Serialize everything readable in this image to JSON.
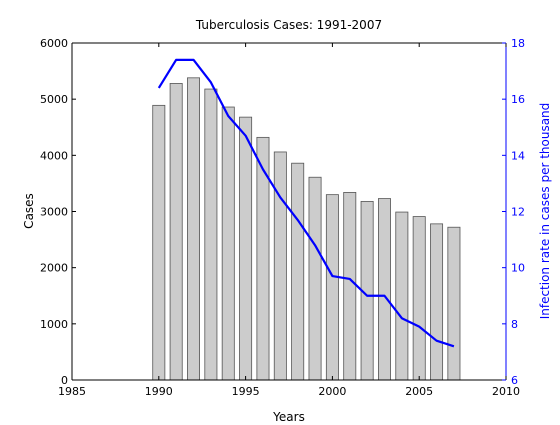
{
  "chart_data": {
    "type": "bar",
    "title": "Tuberculosis Cases: 1991-2007",
    "xlabel": "Years",
    "ylabel": "Cases",
    "ylabel_right": "Infection rate in cases per thousand",
    "xlim": [
      1985,
      2010
    ],
    "ylim": [
      0,
      6000
    ],
    "ylim_right": [
      6,
      18
    ],
    "x_ticks": [
      1985,
      1990,
      1995,
      2000,
      2005,
      2010
    ],
    "y_ticks": [
      0,
      1000,
      2000,
      3000,
      4000,
      5000,
      6000
    ],
    "y_ticks_right": [
      6,
      8,
      10,
      12,
      14,
      16,
      18
    ],
    "grid": false,
    "series": [
      {
        "type": "bar",
        "axis": "left",
        "color": "#cccccc",
        "x": [
          1990,
          1991,
          1992,
          1993,
          1994,
          1995,
          1996,
          1997,
          1998,
          1999,
          2000,
          2001,
          2002,
          2003,
          2004,
          2005,
          2006,
          2007
        ],
        "values": [
          4890,
          5280,
          5380,
          5180,
          4860,
          4680,
          4320,
          4060,
          3860,
          3610,
          3300,
          3340,
          3180,
          3230,
          2990,
          2910,
          2780,
          2720
        ]
      },
      {
        "type": "line",
        "axis": "right",
        "color": "#0000ff",
        "x": [
          1990,
          1991,
          1992,
          1993,
          1994,
          1995,
          1996,
          1997,
          1998,
          1999,
          2000,
          2001,
          2002,
          2003,
          2004,
          2005,
          2006,
          2007
        ],
        "values": [
          16.4,
          17.4,
          17.4,
          16.6,
          15.4,
          14.7,
          13.5,
          12.5,
          11.7,
          10.8,
          9.7,
          9.6,
          9.0,
          9.0,
          8.2,
          7.9,
          7.4,
          7.2
        ]
      }
    ]
  },
  "colors": {
    "axis": "#000000",
    "right_axis": "#0000ff",
    "bar_fill": "#cccccc",
    "bar_stroke": "#555555",
    "line": "#0000ff"
  }
}
